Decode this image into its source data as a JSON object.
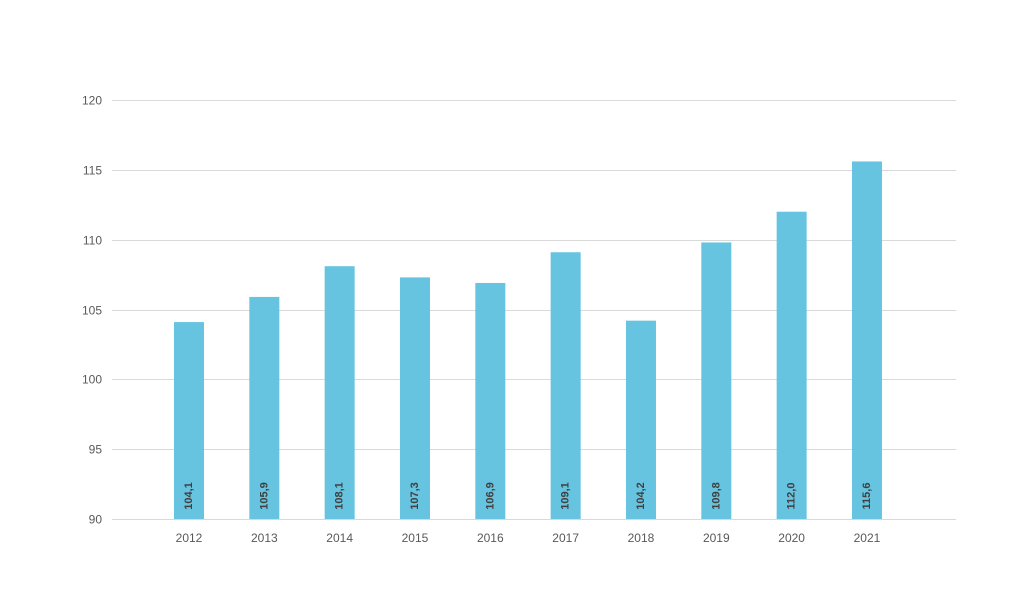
{
  "chart_data": {
    "type": "bar",
    "categories": [
      "2012",
      "2013",
      "2014",
      "2015",
      "2016",
      "2017",
      "2018",
      "2019",
      "2020",
      "2021"
    ],
    "values": [
      104.1,
      105.9,
      108.1,
      107.3,
      106.9,
      109.1,
      104.2,
      109.8,
      112.0,
      115.6
    ],
    "data_labels": [
      "104,1",
      "105,9",
      "108,1",
      "107,3",
      "106,9",
      "109,1",
      "104,2",
      "109,8",
      "112,0",
      "115,6"
    ],
    "y_ticks": [
      90,
      95,
      100,
      105,
      110,
      115,
      120
    ],
    "ylim": [
      90,
      120
    ],
    "title": "",
    "xlabel": "",
    "ylabel": "",
    "grid": true,
    "legend": "none",
    "bar_color": "#66c4e0",
    "gridline_color": "#d9d9d9",
    "label_color": "#404040",
    "tick_color": "#595959"
  }
}
